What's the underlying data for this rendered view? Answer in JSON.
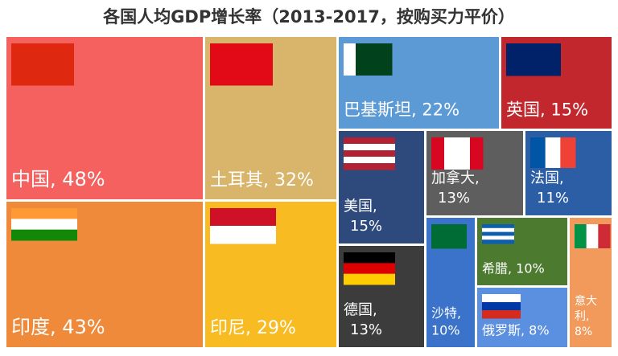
{
  "chart_data": {
    "type": "treemap",
    "title": "各国人均GDP增长率（2013-2017，按购买力平价）",
    "categories": [
      "中国",
      "土耳其",
      "印度",
      "印尼",
      "巴基斯坦",
      "英国",
      "美国",
      "加拿大",
      "法国",
      "德国",
      "沙特",
      "希腊",
      "俄罗斯",
      "意大利"
    ],
    "values": [
      48,
      32,
      43,
      29,
      22,
      15,
      15,
      13,
      11,
      13,
      10,
      10,
      8,
      8
    ],
    "labels": [
      [
        "中国, 48%"
      ],
      [
        "土耳其, 32%"
      ],
      [
        "印度, 43%"
      ],
      [
        "印尼, 29%"
      ],
      [
        "巴基斯坦, 22%"
      ],
      [
        "英国, 15%"
      ],
      [
        "美国,",
        "15%"
      ],
      [
        "加拿大,",
        "13%"
      ],
      [
        "法国,",
        "11%"
      ],
      [
        "德国,",
        "13%"
      ],
      [
        "沙特,",
        "10%"
      ],
      [
        "希腊, 10%"
      ],
      [
        "俄罗斯, 8%"
      ],
      [
        "意大",
        "利,",
        "8%"
      ]
    ],
    "colors": [
      "#f4615e",
      "#d8b56b",
      "#ee8a39",
      "#f8bb21",
      "#5c9ad6",
      "#c1272d",
      "#2e4a7d",
      "#5e5e5e",
      "#2c5ea6",
      "#3c3c3c",
      "#3a73c9",
      "#4c7b2f",
      "#5b8fe0",
      "#f19a5b"
    ]
  }
}
